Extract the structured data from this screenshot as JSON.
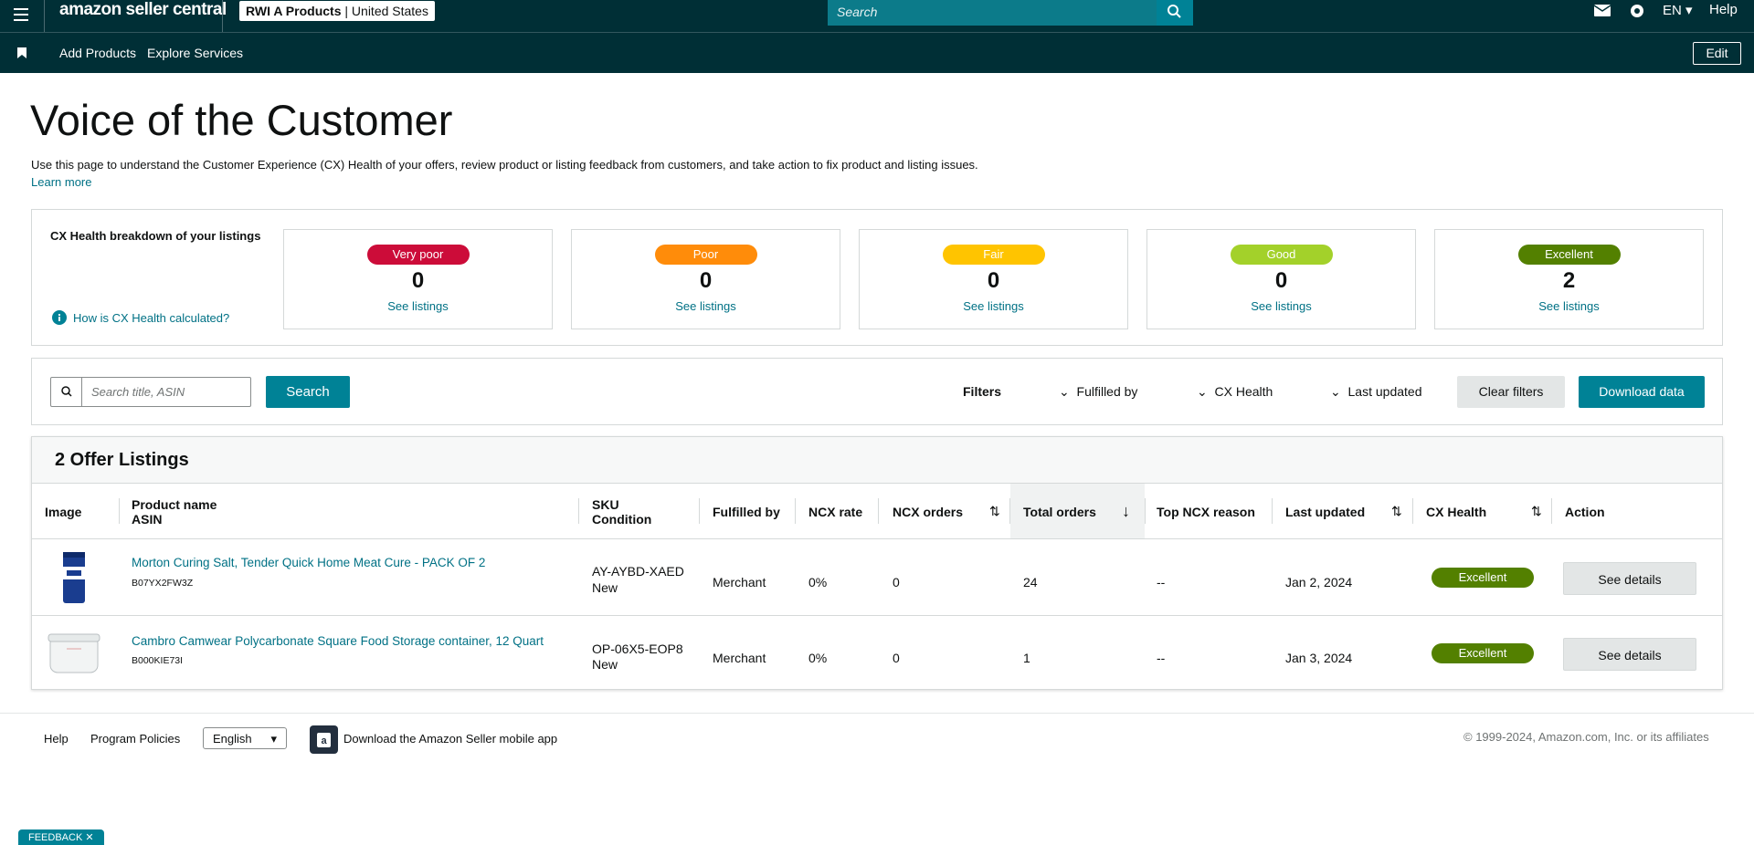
{
  "nav": {
    "logo": "amazon seller central",
    "account": "RWI A Products",
    "marketplace": "United States",
    "search": "Search",
    "language": "EN",
    "help": "Help",
    "links": [
      "Add Products",
      "Explore Services"
    ],
    "edit": "Edit"
  },
  "header": {
    "title": "Voice of the Customer",
    "description": "Use this page to understand the Customer Experience (CX) Health of your offers, review product or listing feedback from customers, and take action to fix product and listing issues.",
    "learn_more": "Learn more"
  },
  "cx_health": {
    "title": "CX Health breakdown of your listings",
    "help_link": "How is CX Health calculated?",
    "cards": [
      {
        "label": "Very poor",
        "count": "0",
        "link": "See listings"
      },
      {
        "label": "Poor",
        "count": "0",
        "link": "See listings"
      },
      {
        "label": "Fair",
        "count": "0",
        "link": "See listings"
      },
      {
        "label": "Good",
        "count": "0",
        "link": "See listings"
      },
      {
        "label": "Excellent",
        "count": "2",
        "link": "See listings"
      }
    ]
  },
  "filters": {
    "search_placeholder": "Search title, ASIN",
    "search_button": "Search",
    "label": "Filters",
    "dropdowns": [
      "Fulfilled by",
      "CX Health",
      "Last updated"
    ],
    "clear": "Clear filters",
    "download": "Download data"
  },
  "table": {
    "title": "2 Offer Listings",
    "columns": [
      "Image",
      "Product name",
      "ASIN",
      "SKU",
      "Condition",
      "Fulfilled by",
      "NCX rate",
      "NCX orders",
      "Total orders",
      "Top NCX reason",
      "Last updated",
      "CX Health",
      "Action"
    ],
    "rows": [
      {
        "product": "Morton Curing Salt, Tender Quick Home Meat Cure - PACK OF 2",
        "asin": "B07YX2FW3Z",
        "sku": "AY-AYBD-XAED",
        "condition": "New",
        "fulfilled": "Merchant",
        "ncx_rate": "0%",
        "ncx_orders": "0",
        "total_orders": "24",
        "reason": "--",
        "updated": "Jan 2, 2024",
        "health": "Excellent",
        "action": "See details"
      },
      {
        "product": "Cambro Camwear Polycarbonate Square Food Storage container, 12 Quart",
        "asin": "B000KIE73I",
        "sku": "OP-06X5-EOP8",
        "condition": "New",
        "fulfilled": "Merchant",
        "ncx_rate": "0%",
        "ncx_orders": "0",
        "total_orders": "1",
        "reason": "--",
        "updated": "Jan 3, 2024",
        "health": "Excellent",
        "action": "See details"
      }
    ]
  },
  "footer": {
    "links": [
      "Help",
      "Program Policies"
    ],
    "language": "English",
    "app": "Download the Amazon Seller mobile app",
    "copyright": "© 1999-2024, Amazon.com, Inc. or its affiliates"
  },
  "feedback": "FEEDBACK"
}
